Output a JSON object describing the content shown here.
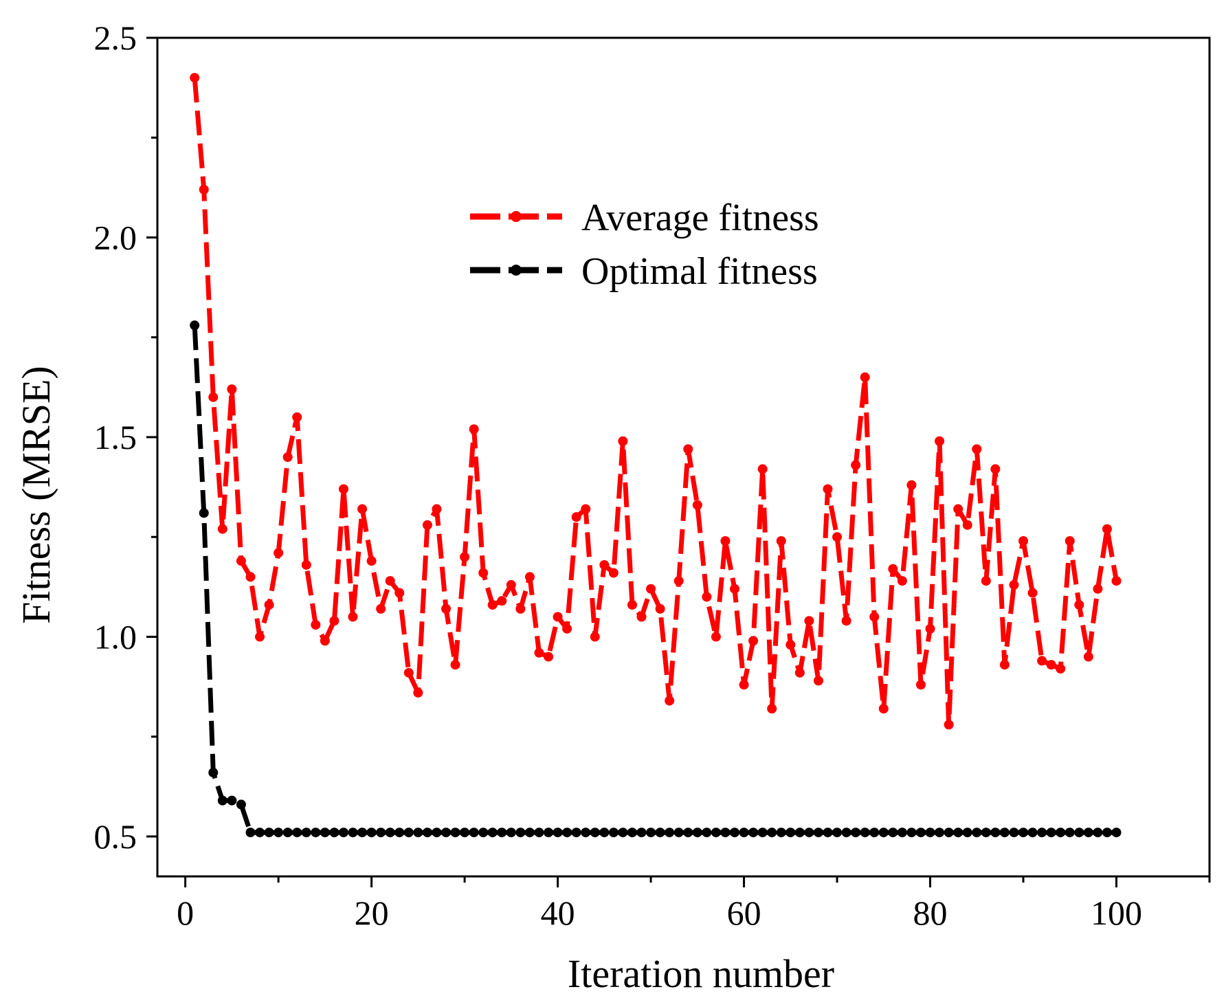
{
  "chart_data": {
    "type": "line",
    "title": "",
    "xlabel": "Iteration number",
    "ylabel": "Fitness (MRSE)",
    "xlim": [
      -3,
      110
    ],
    "ylim": [
      0.4,
      2.5
    ],
    "x_ticks": [
      0,
      20,
      40,
      60,
      80,
      100
    ],
    "x_tick_labels": [
      "0",
      "20",
      "40",
      "60",
      "80",
      "100"
    ],
    "y_ticks": [
      0.5,
      1.0,
      1.5,
      2.0,
      2.5
    ],
    "y_tick_labels": [
      "0.5",
      "1.0",
      "1.5",
      "2.0",
      "2.5"
    ],
    "legend_position": "top-center",
    "series": [
      {
        "name": "Average fitness",
        "color": "#ff0000",
        "line_style": "dashed",
        "marker": "circle",
        "x": [
          1,
          2,
          3,
          4,
          5,
          6,
          7,
          8,
          9,
          10,
          11,
          12,
          13,
          14,
          15,
          16,
          17,
          18,
          19,
          20,
          21,
          22,
          23,
          24,
          25,
          26,
          27,
          28,
          29,
          30,
          31,
          32,
          33,
          34,
          35,
          36,
          37,
          38,
          39,
          40,
          41,
          42,
          43,
          44,
          45,
          46,
          47,
          48,
          49,
          50,
          51,
          52,
          53,
          54,
          55,
          56,
          57,
          58,
          59,
          60,
          61,
          62,
          63,
          64,
          65,
          66,
          67,
          68,
          69,
          70,
          71,
          72,
          73,
          74,
          75,
          76,
          77,
          78,
          79,
          80,
          81,
          82,
          83,
          84,
          85,
          86,
          87,
          88,
          89,
          90,
          91,
          92,
          93,
          94,
          95,
          96,
          97,
          98,
          99,
          100
        ],
        "values": [
          2.4,
          2.12,
          1.6,
          1.27,
          1.62,
          1.19,
          1.15,
          1.0,
          1.08,
          1.21,
          1.45,
          1.55,
          1.18,
          1.03,
          0.99,
          1.04,
          1.37,
          1.05,
          1.32,
          1.19,
          1.07,
          1.14,
          1.11,
          0.91,
          0.86,
          1.28,
          1.32,
          1.07,
          0.93,
          1.2,
          1.52,
          1.16,
          1.08,
          1.09,
          1.13,
          1.07,
          1.15,
          0.96,
          0.95,
          1.05,
          1.02,
          1.3,
          1.32,
          1.0,
          1.18,
          1.16,
          1.49,
          1.08,
          1.05,
          1.12,
          1.07,
          0.84,
          1.14,
          1.47,
          1.33,
          1.1,
          1.0,
          1.24,
          1.12,
          0.88,
          0.99,
          1.42,
          0.82,
          1.24,
          0.98,
          0.91,
          1.04,
          0.89,
          1.37,
          1.25,
          1.04,
          1.43,
          1.65,
          1.05,
          0.82,
          1.17,
          1.14,
          1.38,
          0.88,
          1.02,
          1.49,
          0.78,
          1.32,
          1.28,
          1.47,
          1.14,
          1.42,
          0.93,
          1.13,
          1.24,
          1.11,
          0.94,
          0.93,
          0.92,
          1.24,
          1.08,
          0.95,
          1.12,
          1.27,
          1.14
        ]
      },
      {
        "name": "Optimal fitness",
        "color": "#000000",
        "line_style": "dashed",
        "marker": "circle",
        "x": [
          1,
          2,
          3,
          4,
          5,
          6,
          7,
          8,
          9,
          10,
          11,
          12,
          13,
          14,
          15,
          16,
          17,
          18,
          19,
          20,
          21,
          22,
          23,
          24,
          25,
          26,
          27,
          28,
          29,
          30,
          31,
          32,
          33,
          34,
          35,
          36,
          37,
          38,
          39,
          40,
          41,
          42,
          43,
          44,
          45,
          46,
          47,
          48,
          49,
          50,
          51,
          52,
          53,
          54,
          55,
          56,
          57,
          58,
          59,
          60,
          61,
          62,
          63,
          64,
          65,
          66,
          67,
          68,
          69,
          70,
          71,
          72,
          73,
          74,
          75,
          76,
          77,
          78,
          79,
          80,
          81,
          82,
          83,
          84,
          85,
          86,
          87,
          88,
          89,
          90,
          91,
          92,
          93,
          94,
          95,
          96,
          97,
          98,
          99,
          100
        ],
        "values": [
          1.78,
          1.31,
          0.66,
          0.59,
          0.59,
          0.58,
          0.51,
          0.51,
          0.51,
          0.51,
          0.51,
          0.51,
          0.51,
          0.51,
          0.51,
          0.51,
          0.51,
          0.51,
          0.51,
          0.51,
          0.51,
          0.51,
          0.51,
          0.51,
          0.51,
          0.51,
          0.51,
          0.51,
          0.51,
          0.51,
          0.51,
          0.51,
          0.51,
          0.51,
          0.51,
          0.51,
          0.51,
          0.51,
          0.51,
          0.51,
          0.51,
          0.51,
          0.51,
          0.51,
          0.51,
          0.51,
          0.51,
          0.51,
          0.51,
          0.51,
          0.51,
          0.51,
          0.51,
          0.51,
          0.51,
          0.51,
          0.51,
          0.51,
          0.51,
          0.51,
          0.51,
          0.51,
          0.51,
          0.51,
          0.51,
          0.51,
          0.51,
          0.51,
          0.51,
          0.51,
          0.51,
          0.51,
          0.51,
          0.51,
          0.51,
          0.51,
          0.51,
          0.51,
          0.51,
          0.51,
          0.51,
          0.51,
          0.51,
          0.51,
          0.51,
          0.51,
          0.51,
          0.51,
          0.51,
          0.51,
          0.51,
          0.51,
          0.51,
          0.51,
          0.51,
          0.51,
          0.51,
          0.51,
          0.51,
          0.51
        ]
      }
    ]
  }
}
